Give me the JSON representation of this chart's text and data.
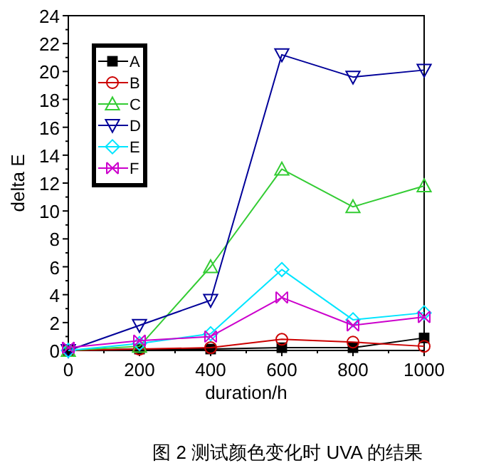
{
  "chart_data": {
    "type": "line",
    "xlabel": "duration/h",
    "ylabel": "delta E",
    "x": [
      0,
      200,
      400,
      600,
      800,
      1000
    ],
    "series": [
      {
        "name": "A",
        "color": "#000000",
        "marker": "square",
        "values": [
          0,
          0.1,
          0.1,
          0.2,
          0.2,
          0.9
        ]
      },
      {
        "name": "B",
        "color": "#cc0000",
        "marker": "circle",
        "values": [
          0,
          0.1,
          0.2,
          0.8,
          0.6,
          0.3
        ]
      },
      {
        "name": "C",
        "color": "#33cc33",
        "marker": "triangle",
        "values": [
          0,
          0.3,
          6.0,
          13.0,
          10.3,
          11.8
        ]
      },
      {
        "name": "D",
        "color": "#000099",
        "marker": "triangle-down",
        "values": [
          0,
          1.8,
          3.6,
          21.2,
          19.6,
          20.1
        ]
      },
      {
        "name": "E",
        "color": "#00e5ff",
        "marker": "diamond",
        "values": [
          0,
          0.5,
          1.2,
          5.8,
          2.2,
          2.7
        ]
      },
      {
        "name": "F",
        "color": "#cc00cc",
        "marker": "cross",
        "values": [
          0.2,
          0.7,
          1.0,
          3.8,
          1.8,
          2.4
        ]
      }
    ],
    "xlim": [
      0,
      1000
    ],
    "xticks": [
      0,
      200,
      400,
      600,
      800,
      1000
    ],
    "ylim": [
      0,
      24
    ],
    "yticks": [
      0,
      2,
      4,
      6,
      8,
      10,
      12,
      14,
      16,
      18,
      20,
      22,
      24
    ],
    "legend": "top left",
    "grid": false,
    "line_style": "solid",
    "annotations": [
      "图 2 测试颜色变化时 UVA 的结果"
    ]
  }
}
